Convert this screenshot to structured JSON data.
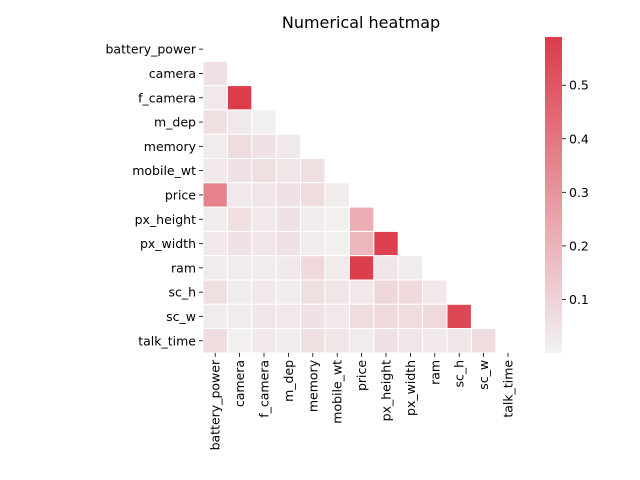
{
  "chart_data": {
    "type": "heatmap",
    "title": "Numerical heatmap",
    "xlabel": "",
    "ylabel": "",
    "mask": "upper-triangle including diagonal",
    "row_labels": [
      "battery_power",
      "camera",
      "f_camera",
      "m_dep",
      "memory",
      "mobile_wt",
      "price",
      "px_height",
      "px_width",
      "ram",
      "sc_h",
      "sc_w",
      "talk_time"
    ],
    "col_labels": [
      "battery_power",
      "camera",
      "f_camera",
      "m_dep",
      "memory",
      "mobile_wt",
      "price",
      "px_height",
      "px_width",
      "ram",
      "sc_h",
      "sc_w",
      "talk_time"
    ],
    "values": [
      [
        null,
        null,
        null,
        null,
        null,
        null,
        null,
        null,
        null,
        null,
        null,
        null,
        null
      ],
      [
        0.05,
        null,
        null,
        null,
        null,
        null,
        null,
        null,
        null,
        null,
        null,
        null,
        null
      ],
      [
        0.03,
        0.59,
        null,
        null,
        null,
        null,
        null,
        null,
        null,
        null,
        null,
        null,
        null
      ],
      [
        0.06,
        0.03,
        0.01,
        null,
        null,
        null,
        null,
        null,
        null,
        null,
        null,
        null,
        null
      ],
      [
        0.02,
        0.07,
        0.05,
        0.03,
        null,
        null,
        null,
        null,
        null,
        null,
        null,
        null,
        null
      ],
      [
        0.03,
        0.05,
        0.06,
        0.04,
        0.06,
        null,
        null,
        null,
        null,
        null,
        null,
        null,
        null
      ],
      [
        0.36,
        0.03,
        0.04,
        0.05,
        0.07,
        0.02,
        null,
        null,
        null,
        null,
        null,
        null,
        null
      ],
      [
        0.02,
        0.06,
        0.03,
        0.05,
        0.02,
        0.01,
        0.22,
        null,
        null,
        null,
        null,
        null,
        null
      ],
      [
        0.03,
        0.05,
        0.04,
        0.05,
        0.02,
        0.01,
        0.19,
        0.57,
        null,
        null,
        null,
        null,
        null
      ],
      [
        0.02,
        0.02,
        0.02,
        0.03,
        0.08,
        0.02,
        0.58,
        0.04,
        0.02,
        null,
        null,
        null,
        null
      ],
      [
        0.06,
        0.02,
        0.03,
        0.02,
        0.06,
        0.04,
        0.03,
        0.09,
        0.08,
        0.03,
        null,
        null,
        null
      ],
      [
        0.02,
        0.02,
        0.04,
        0.03,
        0.05,
        0.03,
        0.07,
        0.08,
        0.07,
        0.08,
        0.55,
        null,
        null
      ],
      [
        0.07,
        0.01,
        0.03,
        0.02,
        0.06,
        0.04,
        0.02,
        0.05,
        0.04,
        0.03,
        0.04,
        0.07,
        null
      ]
    ],
    "colorbar": {
      "vmin": 0.0,
      "vmax": 0.59,
      "ticks": [
        0.1,
        0.2,
        0.3,
        0.4,
        0.5
      ],
      "tick_labels": [
        "0.1",
        "0.2",
        "0.3",
        "0.4",
        "0.5"
      ]
    },
    "colors": {
      "low": "#f2f2f2",
      "high": "#dc3b4a",
      "cell_border": "#ffffff"
    }
  }
}
